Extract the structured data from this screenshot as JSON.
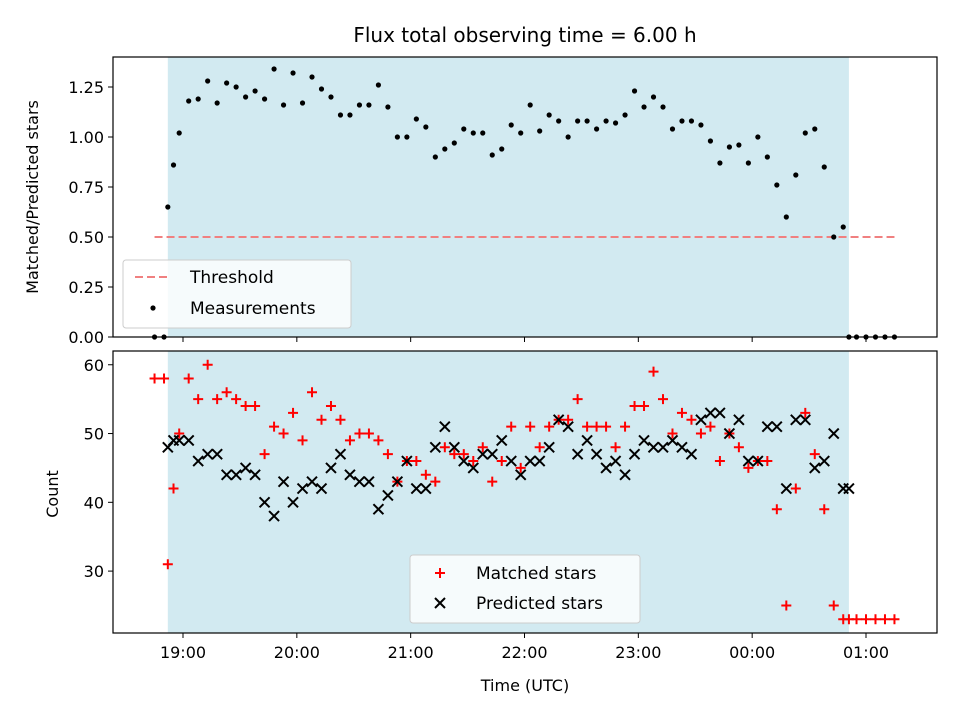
{
  "chart_data": [
    {
      "type": "scatter",
      "title": "Flux total observing time = 6.00 h",
      "ylabel": "Matched/Predicted stars",
      "xlabel": "",
      "ylim": [
        0,
        1.4
      ],
      "yticks": [
        "0.00",
        "0.25",
        "0.50",
        "0.75",
        "1.00",
        "1.25"
      ],
      "shaded_span": [
        "18:52",
        "00:51"
      ],
      "shade_color": "#add8e6",
      "threshold": {
        "name": "Threshold",
        "value": 0.5,
        "x_range": [
          "18:45",
          "01:15"
        ],
        "color": "#f08080"
      },
      "series": [
        {
          "name": "Measurements",
          "color": "#000000",
          "x": [
            "18:45",
            "18:50",
            "18:52",
            "18:55",
            "18:58",
            "19:03",
            "19:08",
            "19:13",
            "19:18",
            "19:23",
            "19:28",
            "19:33",
            "19:38",
            "19:43",
            "19:48",
            "19:53",
            "19:58",
            "20:03",
            "20:08",
            "20:13",
            "20:18",
            "20:23",
            "20:28",
            "20:33",
            "20:38",
            "20:43",
            "20:48",
            "20:53",
            "20:58",
            "21:03",
            "21:08",
            "21:13",
            "21:18",
            "21:23",
            "21:28",
            "21:33",
            "21:38",
            "21:43",
            "21:48",
            "21:53",
            "21:58",
            "22:03",
            "22:08",
            "22:13",
            "22:18",
            "22:23",
            "22:28",
            "22:33",
            "22:38",
            "22:43",
            "22:48",
            "22:53",
            "22:58",
            "23:03",
            "23:08",
            "23:13",
            "23:18",
            "23:23",
            "23:28",
            "23:33",
            "23:38",
            "23:43",
            "23:48",
            "23:53",
            "23:58",
            "00:03",
            "00:08",
            "00:13",
            "00:18",
            "00:23",
            "00:28",
            "00:33",
            "00:38",
            "00:43",
            "00:48",
            "00:51",
            "00:55",
            "01:00",
            "01:05",
            "01:10",
            "01:15"
          ],
          "y": [
            0,
            0,
            0.65,
            0.86,
            1.02,
            1.18,
            1.19,
            1.28,
            1.17,
            1.27,
            1.25,
            1.2,
            1.23,
            1.19,
            1.34,
            1.16,
            1.32,
            1.17,
            1.3,
            1.24,
            1.2,
            1.11,
            1.11,
            1.16,
            1.16,
            1.26,
            1.15,
            1.0,
            1.0,
            1.09,
            1.05,
            0.9,
            0.94,
            0.97,
            1.04,
            1.02,
            1.02,
            0.91,
            0.94,
            1.06,
            1.02,
            1.16,
            1.03,
            1.11,
            1.08,
            1.0,
            1.08,
            1.08,
            1.04,
            1.08,
            1.07,
            1.11,
            1.23,
            1.15,
            1.2,
            1.15,
            1.04,
            1.08,
            1.08,
            1.06,
            0.98,
            0.87,
            0.95,
            0.96,
            0.87,
            1.0,
            0.9,
            0.76,
            0.6,
            0.81,
            1.02,
            1.04,
            0.85,
            0.5,
            0.55,
            0,
            0,
            0,
            0,
            0,
            0
          ]
        }
      ],
      "legend": [
        "Threshold",
        "Measurements"
      ],
      "legend_position": "lower-left"
    },
    {
      "type": "scatter",
      "title": "",
      "xlabel": "Time (UTC)",
      "ylabel": "Count",
      "ylim": [
        21,
        62
      ],
      "yticks": [
        "30",
        "40",
        "50",
        "60"
      ],
      "xticks": [
        "19:00",
        "20:00",
        "21:00",
        "22:00",
        "23:00",
        "00:00",
        "01:00"
      ],
      "shaded_span": [
        "18:52",
        "00:51"
      ],
      "shade_color": "#add8e6",
      "series": [
        {
          "name": "Matched stars",
          "marker": "plus",
          "color": "#ff0000",
          "x": [
            "18:45",
            "18:50",
            "18:52",
            "18:55",
            "18:58",
            "19:03",
            "19:08",
            "19:13",
            "19:18",
            "19:23",
            "19:28",
            "19:33",
            "19:38",
            "19:43",
            "19:48",
            "19:53",
            "19:58",
            "20:03",
            "20:08",
            "20:13",
            "20:18",
            "20:23",
            "20:28",
            "20:33",
            "20:38",
            "20:43",
            "20:48",
            "20:53",
            "20:58",
            "21:03",
            "21:08",
            "21:13",
            "21:18",
            "21:23",
            "21:28",
            "21:33",
            "21:38",
            "21:43",
            "21:48",
            "21:53",
            "21:58",
            "22:03",
            "22:08",
            "22:13",
            "22:18",
            "22:23",
            "22:28",
            "22:33",
            "22:38",
            "22:43",
            "22:48",
            "22:53",
            "22:58",
            "23:03",
            "23:08",
            "23:13",
            "23:18",
            "23:23",
            "23:28",
            "23:33",
            "23:38",
            "23:43",
            "23:48",
            "23:53",
            "23:58",
            "00:03",
            "00:08",
            "00:13",
            "00:18",
            "00:23",
            "00:28",
            "00:33",
            "00:38",
            "00:43",
            "00:48",
            "00:51",
            "00:55",
            "01:00",
            "01:05",
            "01:10",
            "01:15"
          ],
          "y": [
            58,
            58,
            31,
            42,
            50,
            58,
            55,
            60,
            55,
            56,
            55,
            54,
            54,
            47,
            51,
            50,
            53,
            49,
            56,
            52,
            54,
            52,
            49,
            50,
            50,
            49,
            47,
            43,
            46,
            46,
            44,
            43,
            48,
            47,
            47,
            46,
            48,
            43,
            46,
            51,
            45,
            51,
            48,
            51,
            52,
            52,
            55,
            51,
            51,
            51,
            48,
            51,
            54,
            54,
            59,
            55,
            50,
            53,
            52,
            50,
            51,
            46,
            50,
            48,
            45,
            46,
            46,
            39,
            25,
            42,
            53,
            47,
            39,
            25,
            23,
            23,
            23,
            23,
            23,
            23,
            23
          ]
        },
        {
          "name": "Predicted stars",
          "marker": "x",
          "color": "#000000",
          "x": [
            "18:52",
            "18:55",
            "18:58",
            "19:03",
            "19:08",
            "19:13",
            "19:18",
            "19:23",
            "19:28",
            "19:33",
            "19:38",
            "19:43",
            "19:48",
            "19:53",
            "19:58",
            "20:03",
            "20:08",
            "20:13",
            "20:18",
            "20:23",
            "20:28",
            "20:33",
            "20:38",
            "20:43",
            "20:48",
            "20:53",
            "20:58",
            "21:03",
            "21:08",
            "21:13",
            "21:18",
            "21:23",
            "21:28",
            "21:33",
            "21:38",
            "21:43",
            "21:48",
            "21:53",
            "21:58",
            "22:03",
            "22:08",
            "22:13",
            "22:18",
            "22:23",
            "22:28",
            "22:33",
            "22:38",
            "22:43",
            "22:48",
            "22:53",
            "22:58",
            "23:03",
            "23:08",
            "23:13",
            "23:18",
            "23:23",
            "23:28",
            "23:33",
            "23:38",
            "23:43",
            "23:48",
            "23:53",
            "23:58",
            "00:03",
            "00:08",
            "00:13",
            "00:18",
            "00:23",
            "00:28",
            "00:33",
            "00:38",
            "00:43",
            "00:48",
            "00:51"
          ],
          "y": [
            48,
            49,
            49,
            49,
            46,
            47,
            47,
            44,
            44,
            45,
            44,
            40,
            38,
            43,
            40,
            42,
            43,
            42,
            45,
            47,
            44,
            43,
            43,
            39,
            41,
            43,
            46,
            42,
            42,
            48,
            51,
            48,
            46,
            45,
            47,
            47,
            49,
            46,
            44,
            46,
            46,
            48,
            52,
            51,
            47,
            49,
            47,
            45,
            46,
            44,
            47,
            49,
            48,
            48,
            49,
            48,
            47,
            52,
            53,
            53,
            50,
            52,
            46,
            46,
            51,
            51,
            42,
            52,
            52,
            45,
            46,
            50,
            42,
            42
          ]
        }
      ],
      "legend": [
        "Matched stars",
        "Predicted stars"
      ],
      "legend_position": "lower-center"
    }
  ]
}
